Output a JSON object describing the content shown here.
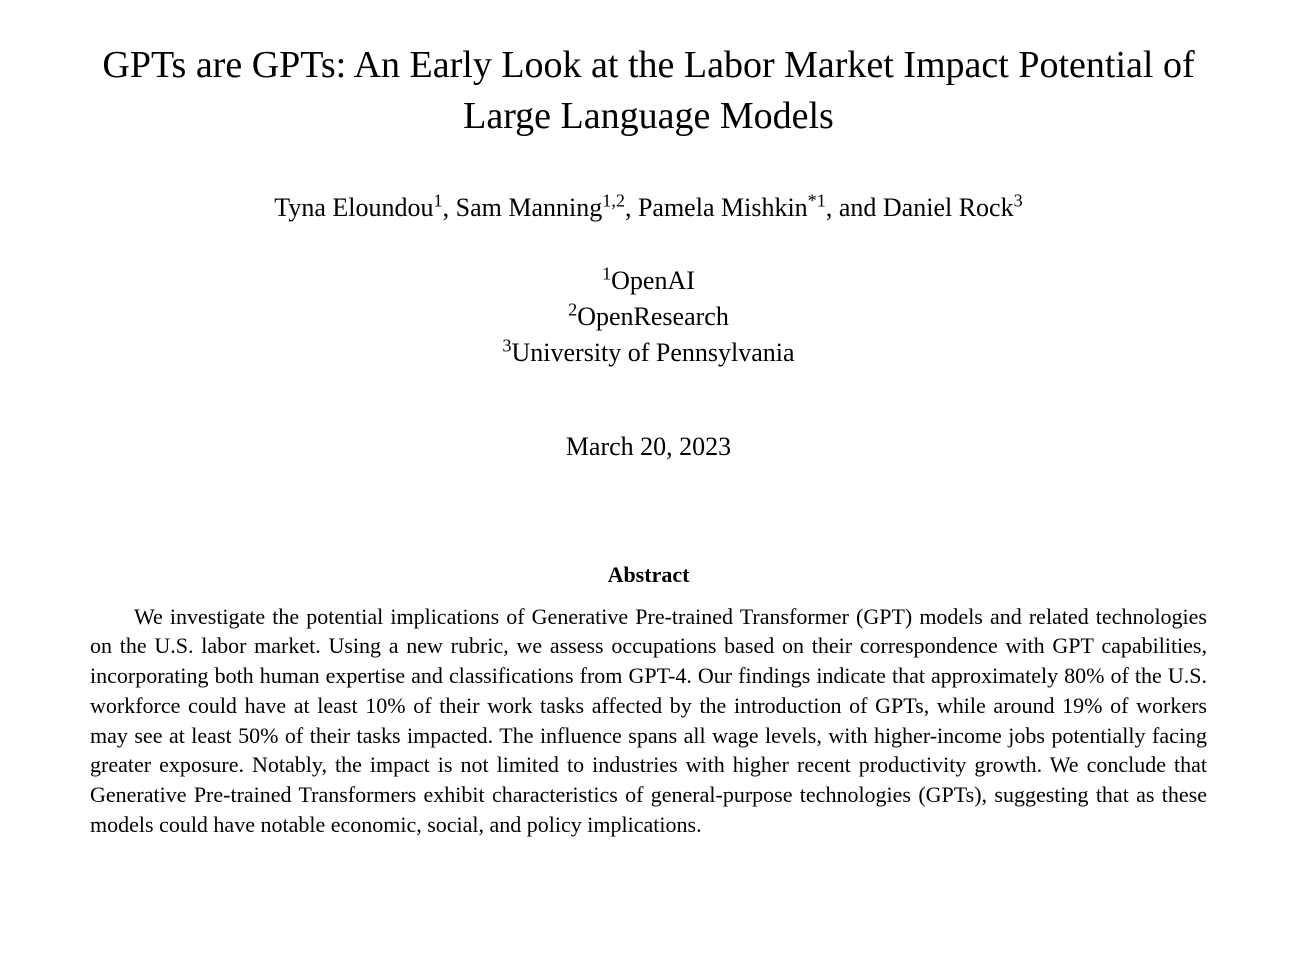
{
  "paper": {
    "title": "GPTs are GPTs: An Early Look at the Labor Market Impact Potential of Large Language Models",
    "authors_html": "Tyna Eloundou<sup>1</sup>, Sam Manning<sup>1,2</sup>, Pamela Mishkin<sup>*1</sup>, and Daniel Rock<sup>3</sup>",
    "affiliations_html": "<sup>1</sup>OpenAI<br><sup>2</sup>OpenResearch<br><sup>3</sup>University of Pennsylvania",
    "date": "March 20, 2023",
    "abstract_heading": "Abstract",
    "abstract_body": "We investigate the potential implications of Generative Pre-trained Transformer (GPT) models and related technologies on the U.S. labor market. Using a new rubric, we assess occupations based on their correspondence with GPT capabilities, incorporating both human expertise and classifications from GPT-4. Our findings indicate that approximately 80% of the U.S. workforce could have at least 10% of their work tasks affected by the introduction of GPTs, while around 19% of workers may see at least 50% of their tasks impacted. The influence spans all wage levels, with higher-income jobs potentially facing greater exposure. Notably, the impact is not limited to industries with higher recent productivity growth. We conclude that Generative Pre-trained Transformers exhibit characteristics of general-purpose technologies (GPTs), suggesting that as these models could have notable economic, social, and policy implications."
  },
  "style": {
    "background_color": "#ffffff",
    "text_color": "#000000",
    "font_family": "Times New Roman",
    "title_fontsize": 38,
    "authors_fontsize": 26,
    "affiliations_fontsize": 26,
    "date_fontsize": 26,
    "abstract_heading_fontsize": 22,
    "abstract_body_fontsize": 22
  }
}
